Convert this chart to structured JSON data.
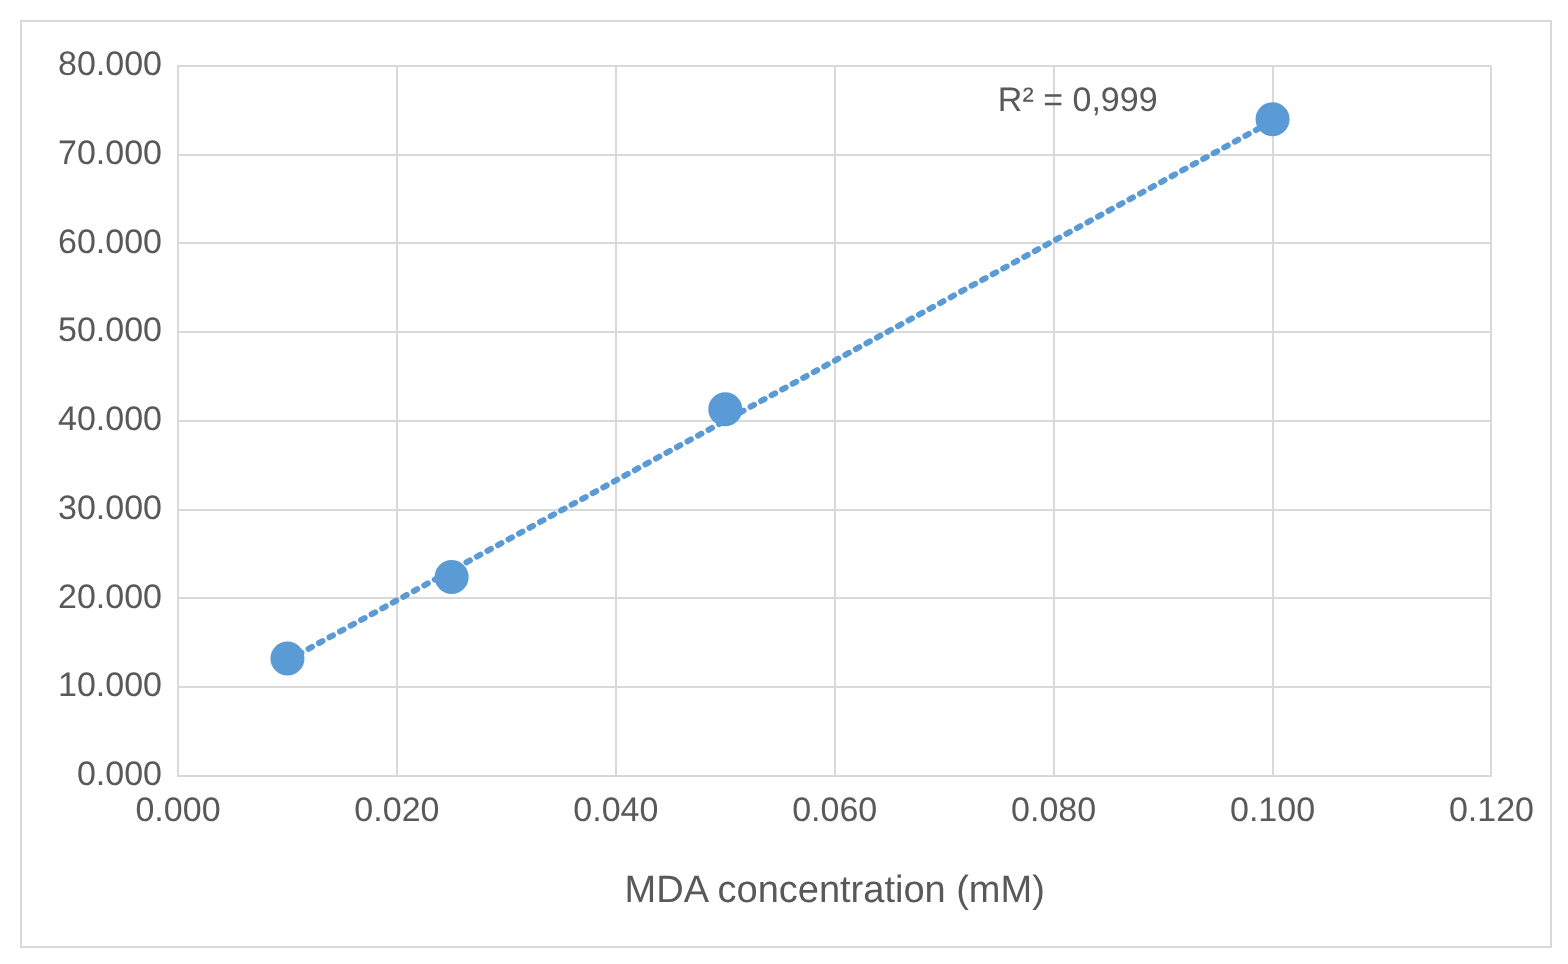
{
  "chart_data": {
    "type": "scatter",
    "xlabel": "MDA concentration (mM)",
    "x": [
      0.01,
      0.025,
      0.05,
      0.1
    ],
    "series": [
      {
        "type": "scatter",
        "color": "#5b9bd5",
        "values": [
          13.2,
          22.4,
          41.3,
          74.0
        ],
        "marker": "circle"
      },
      {
        "type": "line",
        "color": "#5b9bd5",
        "x": [
          0.01,
          0.1
        ],
        "values": [
          13.0,
          73.8
        ],
        "marker": "none",
        "line_style": "dotted"
      }
    ],
    "xlim": [
      0,
      0.12
    ],
    "xticks": [
      {
        "value": 0,
        "label": "0.000"
      },
      {
        "value": 0.02,
        "label": "0.020"
      },
      {
        "value": 0.04,
        "label": "0.040"
      },
      {
        "value": 0.06,
        "label": "0.060"
      },
      {
        "value": 0.08,
        "label": "0.080"
      },
      {
        "value": 0.1,
        "label": "0.100"
      },
      {
        "value": 0.12,
        "label": "0.120"
      }
    ],
    "ylim": [
      0,
      80
    ],
    "yticks": [
      {
        "value": 0,
        "label": "0.000"
      },
      {
        "value": 10,
        "label": "10.000"
      },
      {
        "value": 20,
        "label": "20.000"
      },
      {
        "value": 30,
        "label": "30.000"
      },
      {
        "value": 40,
        "label": "40.000"
      },
      {
        "value": 50,
        "label": "50.000"
      },
      {
        "value": 60,
        "label": "60.000"
      },
      {
        "value": 70,
        "label": "70.000"
      },
      {
        "value": 80,
        "label": "80.000"
      }
    ],
    "annotations": [
      "R² = 0,999"
    ],
    "grid": true,
    "legend": false
  }
}
